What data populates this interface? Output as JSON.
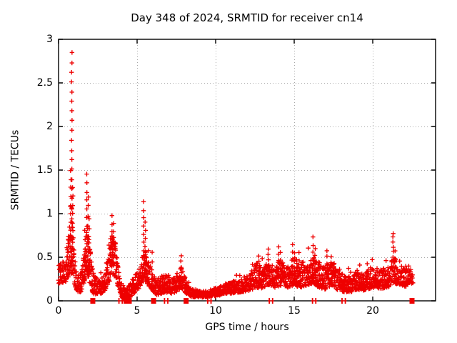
{
  "title": "Day 348 of 2024, SRMTID for receiver cn14",
  "x_axis": {
    "label": "GPS time / hours",
    "tick_labels": [
      "0",
      "5",
      "10",
      "15",
      "20"
    ],
    "tick_values": [
      0,
      5,
      10,
      15,
      20
    ]
  },
  "y_axis": {
    "label": "SRMTID / TECUs",
    "tick_labels": [
      "0",
      "0.5",
      "1",
      "1.5",
      "2",
      "2.5",
      "3"
    ],
    "tick_values": [
      0,
      0.5,
      1,
      1.5,
      2,
      2.5,
      3
    ]
  },
  "colors": {
    "marker": "#ee0000",
    "grid": "#a8a8a8",
    "border": "#000000",
    "text": "#000000",
    "background": "#ffffff"
  },
  "chart_data": {
    "type": "scatter",
    "marker": "plus",
    "title": "Day 348 of 2024, SRMTID for receiver cn14",
    "xlabel": "GPS time / hours",
    "ylabel": "SRMTID / TECUs",
    "xlim": [
      0,
      24
    ],
    "ylim": [
      0,
      3
    ],
    "grid": true,
    "legend": "none",
    "seed": 348,
    "point_step_hours": 0.02,
    "band_envelope_t_lo_hi": [
      [
        0.0,
        0.18,
        0.42
      ],
      [
        0.3,
        0.2,
        0.45
      ],
      [
        0.5,
        0.22,
        0.55
      ],
      [
        0.7,
        0.3,
        0.85
      ],
      [
        0.9,
        0.3,
        0.85
      ],
      [
        1.05,
        0.15,
        0.45
      ],
      [
        1.2,
        0.1,
        0.3
      ],
      [
        1.4,
        0.1,
        0.3
      ],
      [
        1.55,
        0.15,
        0.45
      ],
      [
        1.7,
        0.25,
        0.7
      ],
      [
        1.85,
        0.3,
        0.9
      ],
      [
        2.0,
        0.2,
        0.6
      ],
      [
        2.15,
        0.1,
        0.4
      ],
      [
        2.3,
        0.07,
        0.3
      ],
      [
        2.5,
        0.08,
        0.28
      ],
      [
        2.7,
        0.08,
        0.25
      ],
      [
        2.95,
        0.12,
        0.32
      ],
      [
        3.2,
        0.2,
        0.6
      ],
      [
        3.45,
        0.3,
        0.8
      ],
      [
        3.65,
        0.25,
        0.65
      ],
      [
        3.85,
        0.12,
        0.4
      ],
      [
        4.05,
        0.03,
        0.18
      ],
      [
        4.35,
        0.02,
        0.12
      ],
      [
        4.6,
        0.05,
        0.22
      ],
      [
        4.9,
        0.1,
        0.3
      ],
      [
        5.2,
        0.15,
        0.4
      ],
      [
        5.45,
        0.25,
        0.6
      ],
      [
        5.7,
        0.18,
        0.5
      ],
      [
        5.95,
        0.12,
        0.35
      ],
      [
        6.2,
        0.06,
        0.25
      ],
      [
        6.5,
        0.08,
        0.28
      ],
      [
        6.8,
        0.1,
        0.32
      ],
      [
        7.1,
        0.08,
        0.28
      ],
      [
        7.5,
        0.1,
        0.3
      ],
      [
        7.8,
        0.15,
        0.4
      ],
      [
        8.05,
        0.1,
        0.3
      ],
      [
        8.3,
        0.05,
        0.16
      ],
      [
        8.7,
        0.04,
        0.12
      ],
      [
        9.2,
        0.04,
        0.11
      ],
      [
        9.7,
        0.05,
        0.13
      ],
      [
        10.2,
        0.06,
        0.17
      ],
      [
        10.7,
        0.08,
        0.2
      ],
      [
        11.2,
        0.09,
        0.23
      ],
      [
        11.7,
        0.1,
        0.26
      ],
      [
        12.2,
        0.12,
        0.32
      ],
      [
        12.6,
        0.15,
        0.45
      ],
      [
        13.0,
        0.14,
        0.38
      ],
      [
        13.4,
        0.18,
        0.45
      ],
      [
        13.8,
        0.15,
        0.42
      ],
      [
        14.2,
        0.18,
        0.48
      ],
      [
        14.6,
        0.15,
        0.42
      ],
      [
        15.0,
        0.18,
        0.5
      ],
      [
        15.4,
        0.15,
        0.45
      ],
      [
        15.8,
        0.18,
        0.45
      ],
      [
        16.2,
        0.2,
        0.52
      ],
      [
        16.6,
        0.15,
        0.45
      ],
      [
        17.0,
        0.13,
        0.4
      ],
      [
        17.4,
        0.18,
        0.45
      ],
      [
        17.8,
        0.12,
        0.35
      ],
      [
        18.2,
        0.1,
        0.3
      ],
      [
        18.6,
        0.1,
        0.28
      ],
      [
        19.0,
        0.13,
        0.35
      ],
      [
        19.4,
        0.12,
        0.3
      ],
      [
        19.8,
        0.14,
        0.38
      ],
      [
        20.2,
        0.15,
        0.38
      ],
      [
        20.6,
        0.14,
        0.36
      ],
      [
        21.0,
        0.16,
        0.42
      ],
      [
        21.4,
        0.2,
        0.5
      ],
      [
        21.8,
        0.18,
        0.42
      ],
      [
        22.1,
        0.16,
        0.4
      ],
      [
        22.35,
        0.2,
        0.45
      ],
      [
        22.55,
        0.2,
        0.35
      ]
    ],
    "spikes": [
      {
        "t": 0.6,
        "from": 0.3,
        "to": 0.65,
        "n": 5
      },
      {
        "t": 0.78,
        "from": 0.4,
        "to": 1.5,
        "n": 12
      },
      {
        "t": 0.84,
        "from": 0.5,
        "to": 2.85,
        "n": 22
      },
      {
        "t": 0.9,
        "from": 0.4,
        "to": 1.3,
        "n": 10
      },
      {
        "t": 1.68,
        "from": 0.3,
        "to": 0.8,
        "n": 6
      },
      {
        "t": 1.8,
        "from": 0.45,
        "to": 1.45,
        "n": 11
      },
      {
        "t": 1.88,
        "from": 0.4,
        "to": 1.2,
        "n": 8
      },
      {
        "t": 1.95,
        "from": 0.35,
        "to": 0.95,
        "n": 6
      },
      {
        "t": 3.3,
        "from": 0.3,
        "to": 0.72,
        "n": 5
      },
      {
        "t": 3.42,
        "from": 0.45,
        "to": 0.97,
        "n": 7
      },
      {
        "t": 3.52,
        "from": 0.4,
        "to": 0.88,
        "n": 6
      },
      {
        "t": 5.42,
        "from": 0.4,
        "to": 1.13,
        "n": 9
      },
      {
        "t": 5.52,
        "from": 0.35,
        "to": 0.9,
        "n": 7
      },
      {
        "t": 5.95,
        "from": 0.25,
        "to": 0.55,
        "n": 4
      },
      {
        "t": 7.8,
        "from": 0.25,
        "to": 0.52,
        "n": 5
      },
      {
        "t": 12.75,
        "from": 0.3,
        "to": 0.52,
        "n": 4
      },
      {
        "t": 13.35,
        "from": 0.28,
        "to": 0.6,
        "n": 6
      },
      {
        "t": 14.0,
        "from": 0.3,
        "to": 0.62,
        "n": 5
      },
      {
        "t": 14.12,
        "from": 0.28,
        "to": 0.55,
        "n": 4
      },
      {
        "t": 14.9,
        "from": 0.3,
        "to": 0.65,
        "n": 5
      },
      {
        "t": 15.02,
        "from": 0.28,
        "to": 0.55,
        "n": 4
      },
      {
        "t": 15.3,
        "from": 0.28,
        "to": 0.55,
        "n": 4
      },
      {
        "t": 16.2,
        "from": 0.3,
        "to": 0.73,
        "n": 6
      },
      {
        "t": 16.33,
        "from": 0.28,
        "to": 0.6,
        "n": 5
      },
      {
        "t": 17.1,
        "from": 0.28,
        "to": 0.58,
        "n": 5
      },
      {
        "t": 17.38,
        "from": 0.25,
        "to": 0.5,
        "n": 4
      },
      {
        "t": 19.65,
        "from": 0.22,
        "to": 0.42,
        "n": 3
      },
      {
        "t": 21.3,
        "from": 0.4,
        "to": 0.78,
        "n": 8
      },
      {
        "t": 21.42,
        "from": 0.3,
        "to": 0.58,
        "n": 4
      }
    ],
    "zero_markers": [
      {
        "t": 2.18,
        "style": "square"
      },
      {
        "t": 3.95,
        "style": "bars"
      },
      {
        "t": 4.3,
        "style": "square"
      },
      {
        "t": 4.5,
        "style": "square"
      },
      {
        "t": 6.05,
        "style": "square"
      },
      {
        "t": 6.85,
        "style": "bars"
      },
      {
        "t": 8.12,
        "style": "square"
      },
      {
        "t": 9.6,
        "style": "bars"
      },
      {
        "t": 13.52,
        "style": "bars"
      },
      {
        "t": 16.27,
        "style": "bars"
      },
      {
        "t": 18.15,
        "style": "bars"
      },
      {
        "t": 22.5,
        "style": "square"
      }
    ]
  }
}
